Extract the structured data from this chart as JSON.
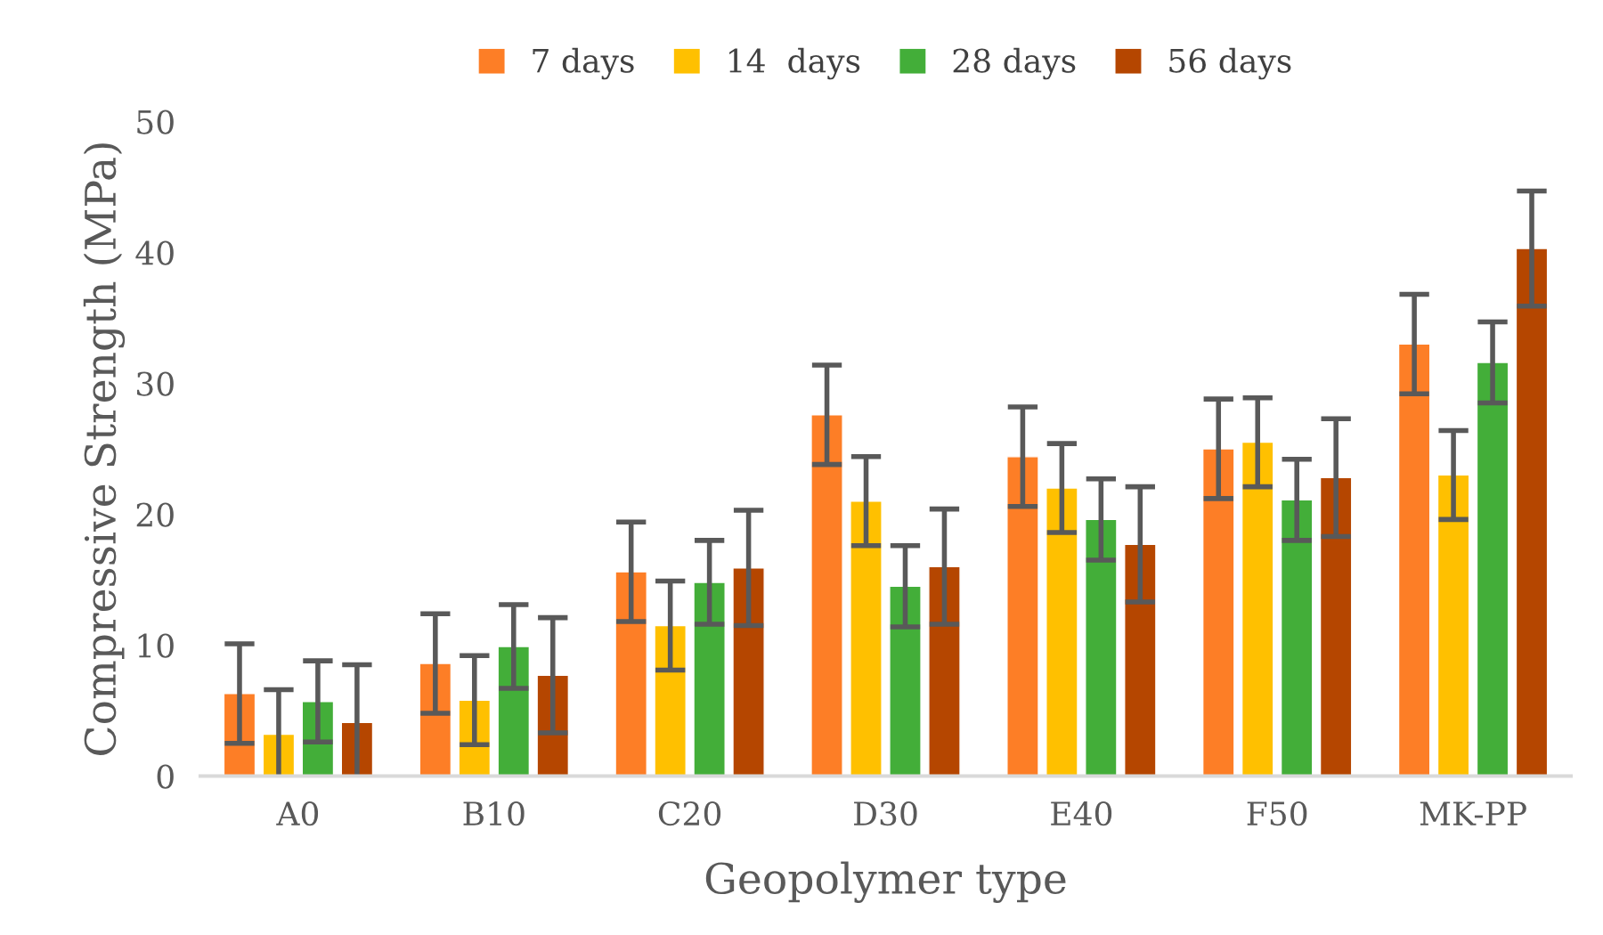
{
  "chart_data": {
    "type": "bar",
    "xlabel": "Geopolymer type",
    "ylabel": "Compressive Strength (MPa)",
    "categories": [
      "A0",
      "B10",
      "C20",
      "D30",
      "E40",
      "F50",
      "MK-PP"
    ],
    "series": [
      {
        "name": "7 days",
        "color": "#fd7e26",
        "values": [
          6.3,
          8.6,
          15.6,
          27.6,
          24.4,
          25.0,
          33.0
        ],
        "errors": [
          3.8,
          3.8,
          3.8,
          3.8,
          3.8,
          3.8,
          3.8
        ]
      },
      {
        "name": "14  days",
        "color": "#ffc000",
        "values": [
          3.2,
          5.8,
          11.5,
          21.0,
          22.0,
          25.5,
          23.0
        ],
        "errors": [
          3.4,
          3.4,
          3.4,
          3.4,
          3.4,
          3.4,
          3.4
        ]
      },
      {
        "name": "28 days",
        "color": "#43ae39",
        "values": [
          5.7,
          9.9,
          14.8,
          14.5,
          19.6,
          21.1,
          31.6
        ],
        "errors": [
          3.1,
          3.2,
          3.2,
          3.1,
          3.1,
          3.1,
          3.1
        ]
      },
      {
        "name": "56 days",
        "color": "#b54600",
        "values": [
          4.1,
          7.7,
          15.9,
          16.0,
          17.7,
          22.8,
          40.3
        ],
        "errors": [
          4.4,
          4.4,
          4.4,
          4.4,
          4.4,
          4.5,
          4.4
        ]
      }
    ],
    "ylim": [
      0,
      50
    ],
    "yticks": [
      0,
      10,
      20,
      30,
      40,
      50
    ],
    "grid": false,
    "legend": "top"
  }
}
